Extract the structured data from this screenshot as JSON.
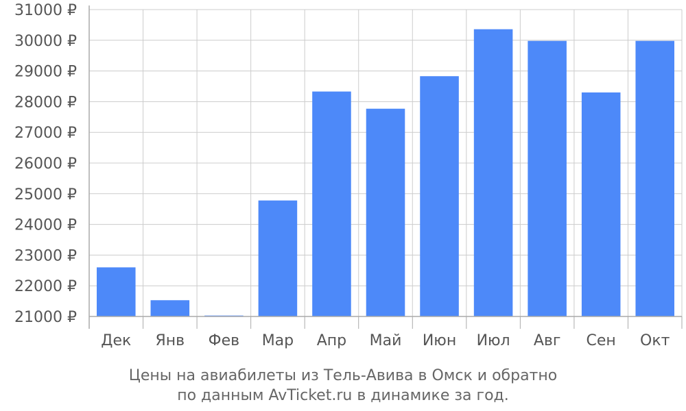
{
  "chart_data": {
    "type": "bar",
    "categories": [
      "Дек",
      "Янв",
      "Фев",
      "Мар",
      "Апр",
      "Май",
      "Июн",
      "Июл",
      "Авг",
      "Сен",
      "Окт"
    ],
    "values": [
      22600,
      21530,
      21030,
      24780,
      28330,
      27770,
      28830,
      30360,
      29980,
      28300,
      29980
    ],
    "ylim": [
      21000,
      31000
    ],
    "y_ticks": [
      21000,
      22000,
      23000,
      24000,
      25000,
      26000,
      27000,
      28000,
      29000,
      30000,
      31000
    ],
    "y_tick_suffix": " ₽",
    "caption_lines": [
      "Цены на авиабилеты из Тель-Авива в Омск и обратно",
      "по данным AvTicket.ru в динамике за год."
    ],
    "grid": true,
    "bar_color": "#4d89f9",
    "grid_color": "#cccccc",
    "axis_color": "#aaaaaa"
  }
}
